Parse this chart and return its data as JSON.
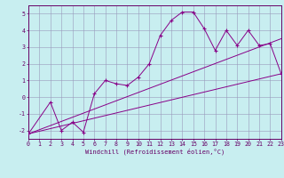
{
  "xlabel": "Windchill (Refroidissement éolien,°C)",
  "bg_color": "#c8eef0",
  "grid_color": "#9999bb",
  "line_color": "#880088",
  "xlim": [
    0,
    23
  ],
  "ylim": [
    -2.5,
    5.5
  ],
  "xticks": [
    0,
    1,
    2,
    3,
    4,
    5,
    6,
    7,
    8,
    9,
    10,
    11,
    12,
    13,
    14,
    15,
    16,
    17,
    18,
    19,
    20,
    21,
    22,
    23
  ],
  "yticks": [
    -2,
    -1,
    0,
    1,
    2,
    3,
    4,
    5
  ],
  "line1_x": [
    0,
    2,
    3,
    4,
    5,
    6,
    7,
    8,
    9,
    10,
    11,
    12,
    13,
    14,
    15,
    16,
    17,
    18,
    19,
    20,
    21,
    22,
    23
  ],
  "line1_y": [
    -2.2,
    -0.3,
    -2.0,
    -1.5,
    -2.1,
    0.2,
    1.0,
    0.8,
    0.7,
    1.2,
    2.0,
    3.7,
    4.6,
    5.1,
    5.1,
    4.1,
    2.8,
    4.0,
    3.1,
    4.0,
    3.1,
    3.2,
    1.4
  ],
  "line2_x": [
    0,
    23
  ],
  "line2_y": [
    -2.2,
    1.4
  ],
  "line3_x": [
    0,
    23
  ],
  "line3_y": [
    -2.2,
    3.5
  ]
}
